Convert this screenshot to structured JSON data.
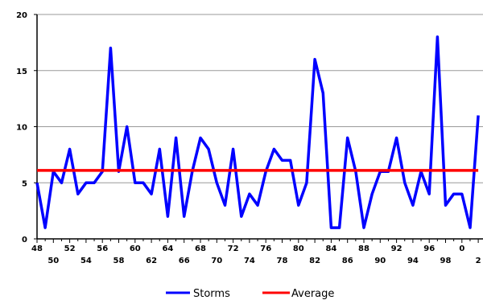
{
  "chart_data": {
    "type": "line",
    "x": [
      48,
      49,
      50,
      51,
      52,
      53,
      54,
      55,
      56,
      57,
      58,
      59,
      60,
      61,
      62,
      63,
      64,
      65,
      66,
      67,
      68,
      69,
      70,
      71,
      72,
      73,
      74,
      75,
      76,
      77,
      78,
      79,
      80,
      81,
      82,
      83,
      84,
      85,
      86,
      87,
      88,
      89,
      90,
      91,
      92,
      93,
      94,
      95,
      96,
      97,
      98,
      99,
      0,
      1,
      2
    ],
    "series": [
      {
        "name": "Storms",
        "color": "#0000ff",
        "values": [
          5,
          1,
          6,
          5,
          8,
          4,
          5,
          5,
          6,
          17,
          6,
          10,
          5,
          5,
          4,
          8,
          2,
          9,
          2,
          6,
          9,
          8,
          5,
          3,
          8,
          2,
          4,
          3,
          6,
          8,
          7,
          7,
          3,
          5,
          16,
          13,
          1,
          1,
          9,
          6,
          1,
          4,
          6,
          6,
          9,
          5,
          3,
          6,
          4,
          18,
          3,
          4,
          4,
          1,
          11
        ]
      },
      {
        "name": "Average",
        "color": "#ff0000",
        "values": [
          6.1,
          6.1,
          6.1,
          6.1,
          6.1,
          6.1,
          6.1,
          6.1,
          6.1,
          6.1,
          6.1,
          6.1,
          6.1,
          6.1,
          6.1,
          6.1,
          6.1,
          6.1,
          6.1,
          6.1,
          6.1,
          6.1,
          6.1,
          6.1,
          6.1,
          6.1,
          6.1,
          6.1,
          6.1,
          6.1,
          6.1,
          6.1,
          6.1,
          6.1,
          6.1,
          6.1,
          6.1,
          6.1,
          6.1,
          6.1,
          6.1,
          6.1,
          6.1,
          6.1,
          6.1,
          6.1,
          6.1,
          6.1,
          6.1,
          6.1,
          6.1,
          6.1,
          6.1,
          6.1,
          6.1
        ]
      }
    ],
    "xtick_labels_top": [
      "48",
      "52",
      "56",
      "60",
      "64",
      "68",
      "72",
      "76",
      "80",
      "84",
      "88",
      "92",
      "96",
      "0"
    ],
    "xtick_labels_bottom": [
      "50",
      "54",
      "58",
      "62",
      "66",
      "70",
      "74",
      "78",
      "82",
      "86",
      "90",
      "94",
      "98",
      "2"
    ],
    "yticks": [
      "0",
      "5",
      "10",
      "15",
      "20"
    ],
    "ylim": [
      0,
      20
    ],
    "grid": "horizontal",
    "legend_position": "bottom-center"
  },
  "legend": {
    "storms_label": "Storms",
    "average_label": "Average"
  }
}
